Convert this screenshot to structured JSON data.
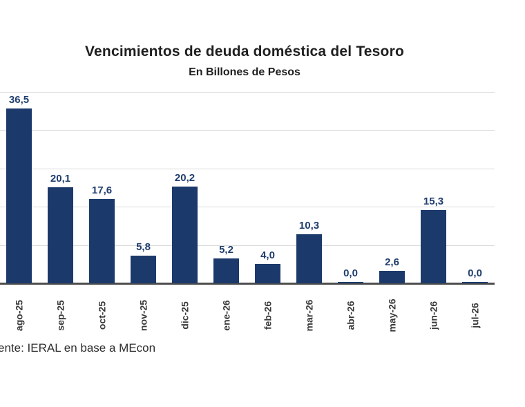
{
  "chart_data": {
    "type": "bar",
    "title": "Vencimientos de deuda doméstica del Tesoro",
    "subtitle": "En Billones de Pesos",
    "categories": [
      "ago-25",
      "sep-25",
      "oct-25",
      "nov-25",
      "dic-25",
      "ene-26",
      "feb-26",
      "mar-26",
      "abr-26",
      "may-26",
      "jun-26",
      "jul-26"
    ],
    "values": [
      36.5,
      20.1,
      17.6,
      5.8,
      20.2,
      5.2,
      4.0,
      10.3,
      0.0,
      2.6,
      15.3,
      0.0
    ],
    "value_labels": [
      "36,5",
      "20,1",
      "17,6",
      "5,8",
      "20,2",
      "5,2",
      "4,0",
      "10,3",
      "0,0",
      "2,6",
      "15,3",
      "0,0"
    ],
    "xlabel": "",
    "ylabel": "",
    "ylim": [
      0,
      40
    ],
    "gridline_step": 8,
    "grid": true,
    "legend": "none",
    "bar_color": "#1b3a6b",
    "value_label_color": "#1f3d6e",
    "gridline_color": "#d9d9d9",
    "axis_line_color": "#4d4d4d",
    "source_note": "ente: IERAL en base a MEcon"
  }
}
